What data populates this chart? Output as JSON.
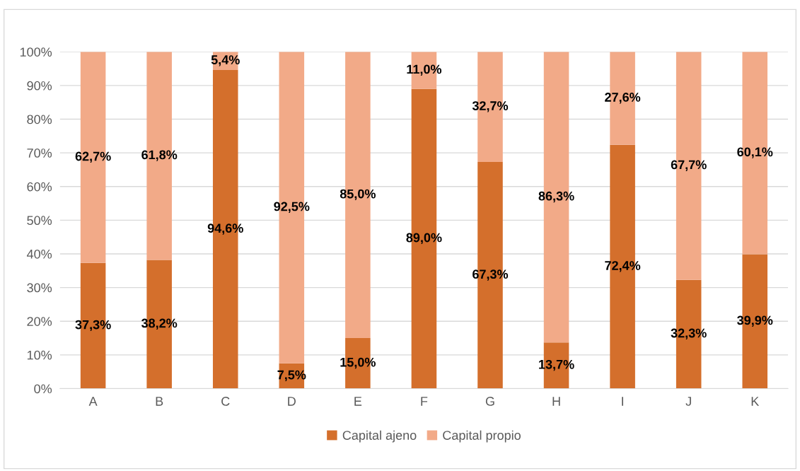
{
  "chart_data": {
    "type": "bar",
    "stacked": true,
    "categories": [
      "A",
      "B",
      "C",
      "D",
      "E",
      "F",
      "G",
      "H",
      "I",
      "J",
      "K"
    ],
    "series": [
      {
        "name": "Capital ajeno",
        "color": "#d46f2c",
        "values": [
          37.3,
          38.2,
          94.6,
          7.5,
          15.0,
          89.0,
          67.3,
          13.7,
          72.4,
          32.3,
          39.9
        ],
        "value_labels": [
          "37,3%",
          "38,2%",
          "94,6%",
          "7,5%",
          "15,0%",
          "89,0%",
          "67,3%",
          "13,7%",
          "72,4%",
          "32,3%",
          "39,9%"
        ]
      },
      {
        "name": "Capital propio",
        "color": "#f2aa88",
        "values": [
          62.7,
          61.8,
          5.4,
          92.5,
          85.0,
          11.0,
          32.7,
          86.3,
          27.6,
          67.7,
          60.1
        ],
        "value_labels": [
          "62,7%",
          "61,8%",
          "5,4%",
          "92,5%",
          "85,0%",
          "11,0%",
          "32,7%",
          "86,3%",
          "27,6%",
          "67,7%",
          "60,1%"
        ]
      }
    ],
    "ylim": [
      0,
      100
    ],
    "yticks": [
      {
        "value": 0,
        "label": "0%"
      },
      {
        "value": 10,
        "label": "10%"
      },
      {
        "value": 20,
        "label": "20%"
      },
      {
        "value": 30,
        "label": "30%"
      },
      {
        "value": 40,
        "label": "40%"
      },
      {
        "value": 50,
        "label": "50%"
      },
      {
        "value": 60,
        "label": "60%"
      },
      {
        "value": 70,
        "label": "70%"
      },
      {
        "value": 80,
        "label": "80%"
      },
      {
        "value": 90,
        "label": "90%"
      },
      {
        "value": 100,
        "label": "100%"
      }
    ],
    "grid": "y",
    "legend": "bottom"
  }
}
